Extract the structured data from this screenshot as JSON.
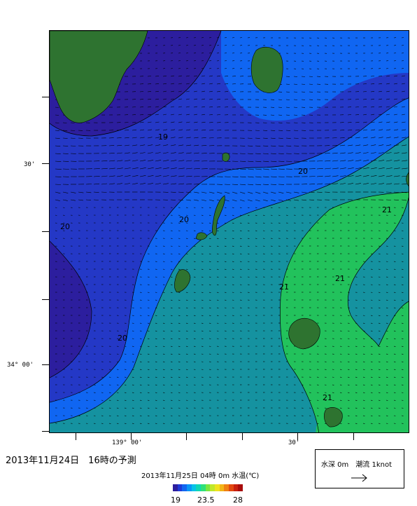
{
  "axes": {
    "x_labels": [
      "139° 00'",
      "30'"
    ],
    "y_labels": [
      "30'",
      "34° 00'"
    ]
  },
  "contours": {
    "labels": [
      "19",
      "20",
      "20",
      "20",
      "20",
      "21",
      "21",
      "21",
      "21"
    ]
  },
  "forecast_title": "2013年11月24日　16時の予測",
  "sst_caption": "2013年11月25日 04時 0m 水温(℃)",
  "colorbar": {
    "min_label": "19",
    "mid_label": "23.5",
    "max_label": "28",
    "colors": [
      "#2c1e9e",
      "#1f3ad6",
      "#1266f0",
      "#0a96f5",
      "#06c2e8",
      "#10d6b4",
      "#2ee07a",
      "#7ae640",
      "#bfe82a",
      "#f0e21e",
      "#f2b416",
      "#f08012",
      "#e24810",
      "#c8200e",
      "#a80c0c"
    ]
  },
  "legend": {
    "text": "水深 0m　潮流 1knot",
    "arrow_icon": "right-arrow-icon"
  },
  "colors": {
    "land": "#2e7330",
    "band_19_below": "#2c1e9e",
    "band_19_20": "#2438c6",
    "band_20_205": "#1066f2",
    "band_205_21": "#1592a0",
    "band_21_above": "#22c25c"
  }
}
